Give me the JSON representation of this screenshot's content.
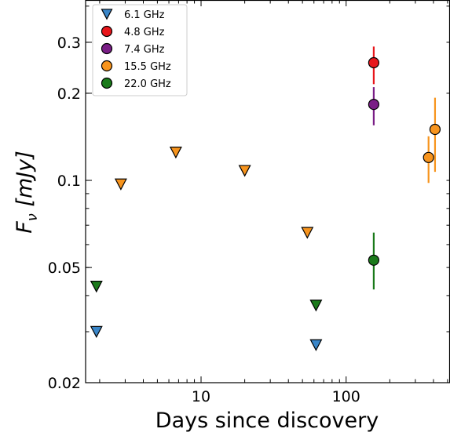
{
  "chart_data": {
    "type": "scatter",
    "title": "",
    "xlabel": "Days since discovery",
    "ylabel_main": "F",
    "ylabel_sub": "ν",
    "ylabel_unit": " [mJy]",
    "xscale": "log",
    "yscale": "log",
    "xlim": [
      1.6,
      520
    ],
    "ylim": [
      0.02,
      0.42
    ],
    "x_ticks": [
      {
        "value": 10,
        "label": "10"
      },
      {
        "value": 100,
        "label": "100"
      }
    ],
    "y_ticks": [
      {
        "value": 0.02,
        "label": "0.02"
      },
      {
        "value": 0.05,
        "label": "0.05"
      },
      {
        "value": 0.1,
        "label": "0.1"
      },
      {
        "value": 0.2,
        "label": "0.2"
      },
      {
        "value": 0.3,
        "label": "0.3"
      }
    ],
    "legend_position": "top-left",
    "series": [
      {
        "name": "6.1 GHz",
        "color": "#3a86c8",
        "marker": "triangle-down",
        "points": [
          {
            "x": 1.9,
            "y": 0.03,
            "upper_limit": true
          },
          {
            "x": 62,
            "y": 0.027,
            "upper_limit": true
          }
        ]
      },
      {
        "name": "4.8 GHz",
        "color": "#e8161b",
        "marker": "circle",
        "points": [
          {
            "x": 155,
            "y": 0.255,
            "yerr_low": 0.215,
            "yerr_high": 0.29
          }
        ]
      },
      {
        "name": "7.4 GHz",
        "color": "#7a1e86",
        "marker": "circle",
        "points": [
          {
            "x": 155,
            "y": 0.183,
            "yerr_low": 0.155,
            "yerr_high": 0.21
          }
        ]
      },
      {
        "name": "15.5 GHz",
        "color": "#f7941d",
        "marker": "circle",
        "points": [
          {
            "x": 2.8,
            "y": 0.097,
            "upper_limit": true
          },
          {
            "x": 6.7,
            "y": 0.125,
            "upper_limit": true
          },
          {
            "x": 20,
            "y": 0.108,
            "upper_limit": true
          },
          {
            "x": 54,
            "y": 0.066,
            "upper_limit": true
          },
          {
            "x": 370,
            "y": 0.12,
            "yerr_low": 0.098,
            "yerr_high": 0.142
          },
          {
            "x": 410,
            "y": 0.15,
            "yerr_low": 0.107,
            "yerr_high": 0.193
          }
        ]
      },
      {
        "name": "22.0 GHz",
        "color": "#1a7a1a",
        "marker": "circle",
        "points": [
          {
            "x": 1.9,
            "y": 0.043,
            "upper_limit": true
          },
          {
            "x": 62,
            "y": 0.037,
            "upper_limit": true
          },
          {
            "x": 155,
            "y": 0.053,
            "yerr_low": 0.042,
            "yerr_high": 0.066
          }
        ]
      }
    ]
  }
}
